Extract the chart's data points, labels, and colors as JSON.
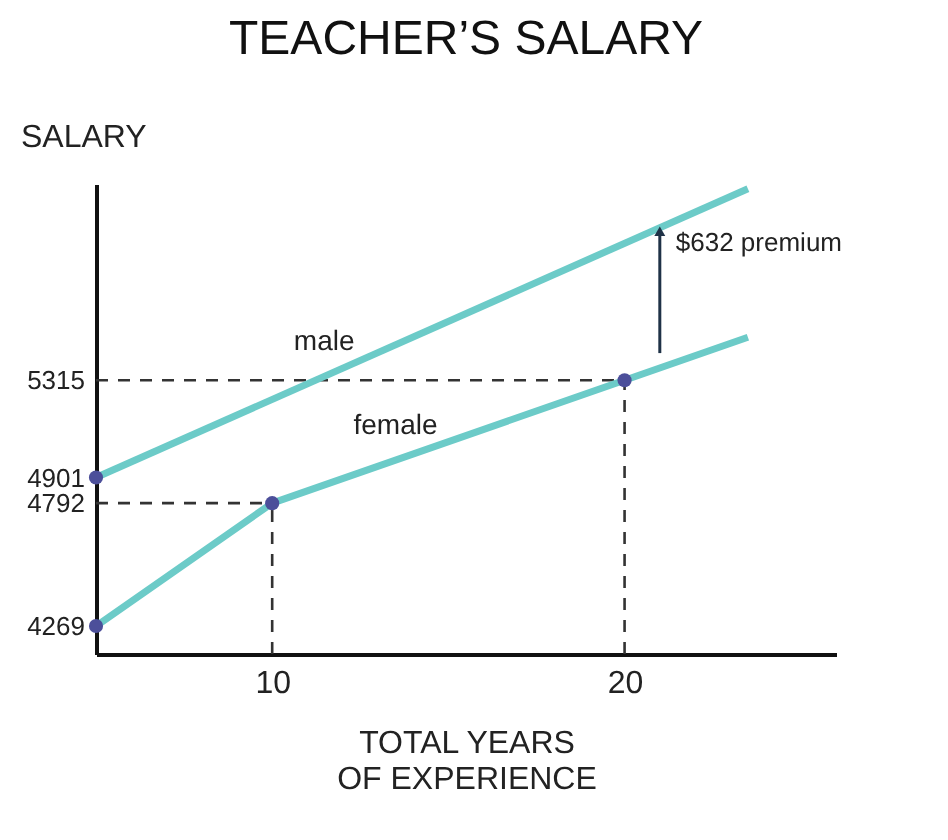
{
  "chart_data": {
    "type": "line",
    "title": "TEACHER’S SALARY",
    "xlabel": "TOTAL YEARS\nOF EXPERIENCE",
    "ylabel": "SALARY",
    "xlim": [
      5,
      26
    ],
    "xticks": [
      10,
      20
    ],
    "ylim": [
      4150,
      6150
    ],
    "yticks": [
      4269,
      4792,
      4901,
      5315
    ],
    "series": [
      {
        "name": "male",
        "color": "#6ccbc8",
        "x": [
          5,
          23.5
        ],
        "values": [
          4901,
          6130
        ]
      },
      {
        "name": "female",
        "color": "#6ccbc8",
        "x": [
          5,
          10,
          20,
          23.5
        ],
        "values": [
          4269,
          4792,
          5315,
          5498
        ]
      },
      {
        "type": "scatter",
        "color": "#4c4f9a",
        "marker": "circle",
        "x": [
          5,
          5,
          10,
          20
        ],
        "values": [
          4269,
          4901,
          4792,
          5315
        ]
      }
    ],
    "ref_lines": [
      {
        "axis": "y",
        "value": 5315,
        "line_style": "dashed",
        "color": "#333333"
      },
      {
        "axis": "y",
        "value": 4792,
        "line_style": "dashed",
        "color": "#333333"
      },
      {
        "axis": "x",
        "value": 10,
        "line_style": "dashed",
        "color": "#333333"
      },
      {
        "axis": "x",
        "value": 20,
        "line_style": "dashed",
        "color": "#333333"
      }
    ],
    "annotations": [
      {
        "text": "$632 premium",
        "x": 21,
        "y": 5999
      }
    ],
    "grid": false,
    "legend": false,
    "marker": "none",
    "line_style": "solid"
  }
}
